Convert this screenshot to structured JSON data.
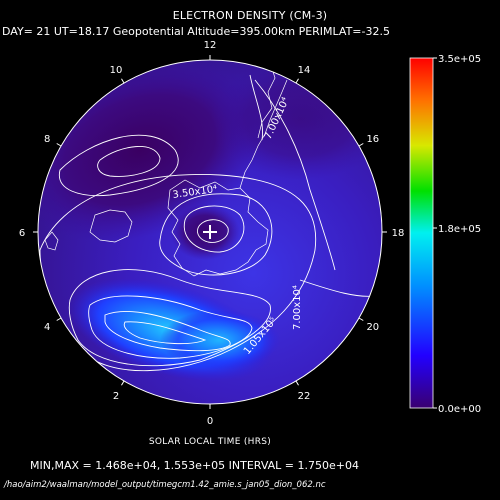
{
  "chart_data": {
    "type": "heatmap",
    "projection": "polar",
    "title": "ELECTRON DENSITY (CM-3)",
    "subtitle": "DAY= 21 UT=18.17 Geopotential Altitude=395.00km PERIMLAT=-32.5",
    "xlabel": "SOLAR LOCAL TIME (HRS)",
    "hour_labels": [
      {
        "hour": 12,
        "label": "12"
      },
      {
        "hour": 14,
        "label": "14"
      },
      {
        "hour": 16,
        "label": "16"
      },
      {
        "hour": 18,
        "label": "18"
      },
      {
        "hour": 20,
        "label": "20"
      },
      {
        "hour": 22,
        "label": "22"
      },
      {
        "hour": 0,
        "label": "0"
      },
      {
        "hour": 2,
        "label": "2"
      },
      {
        "hour": 4,
        "label": "4"
      },
      {
        "hour": 6,
        "label": "6"
      },
      {
        "hour": 8,
        "label": "8"
      },
      {
        "hour": 10,
        "label": "10"
      }
    ],
    "colorbar": {
      "min": 0,
      "max": 350000,
      "tick_labels": [
        {
          "value": 350000,
          "label": "3.5e+05"
        },
        {
          "value": 180000,
          "label": "1.8e+05"
        },
        {
          "value": 0,
          "label": "0.0e+00"
        }
      ]
    },
    "contour_labels": [
      "7.00x10⁴",
      "3.50x10⁴",
      "7.00x10⁴",
      "1.05x10⁵"
    ],
    "min": 14680,
    "max": 155300,
    "interval": 17500,
    "summary": "MIN,MAX =  1.468e+04, 1.553e+05 INTERVAL =  1.750e+04",
    "colors": {
      "background": "#000000",
      "text": "#ffffff",
      "low": "#3a0070",
      "mid": "#2840ff",
      "high": "#20c8ff"
    }
  },
  "footer": {
    "filepath": "/hao/aim2/waalman/model_output/timegcm1.42_amie.s_jan05_dion_062.nc"
  }
}
